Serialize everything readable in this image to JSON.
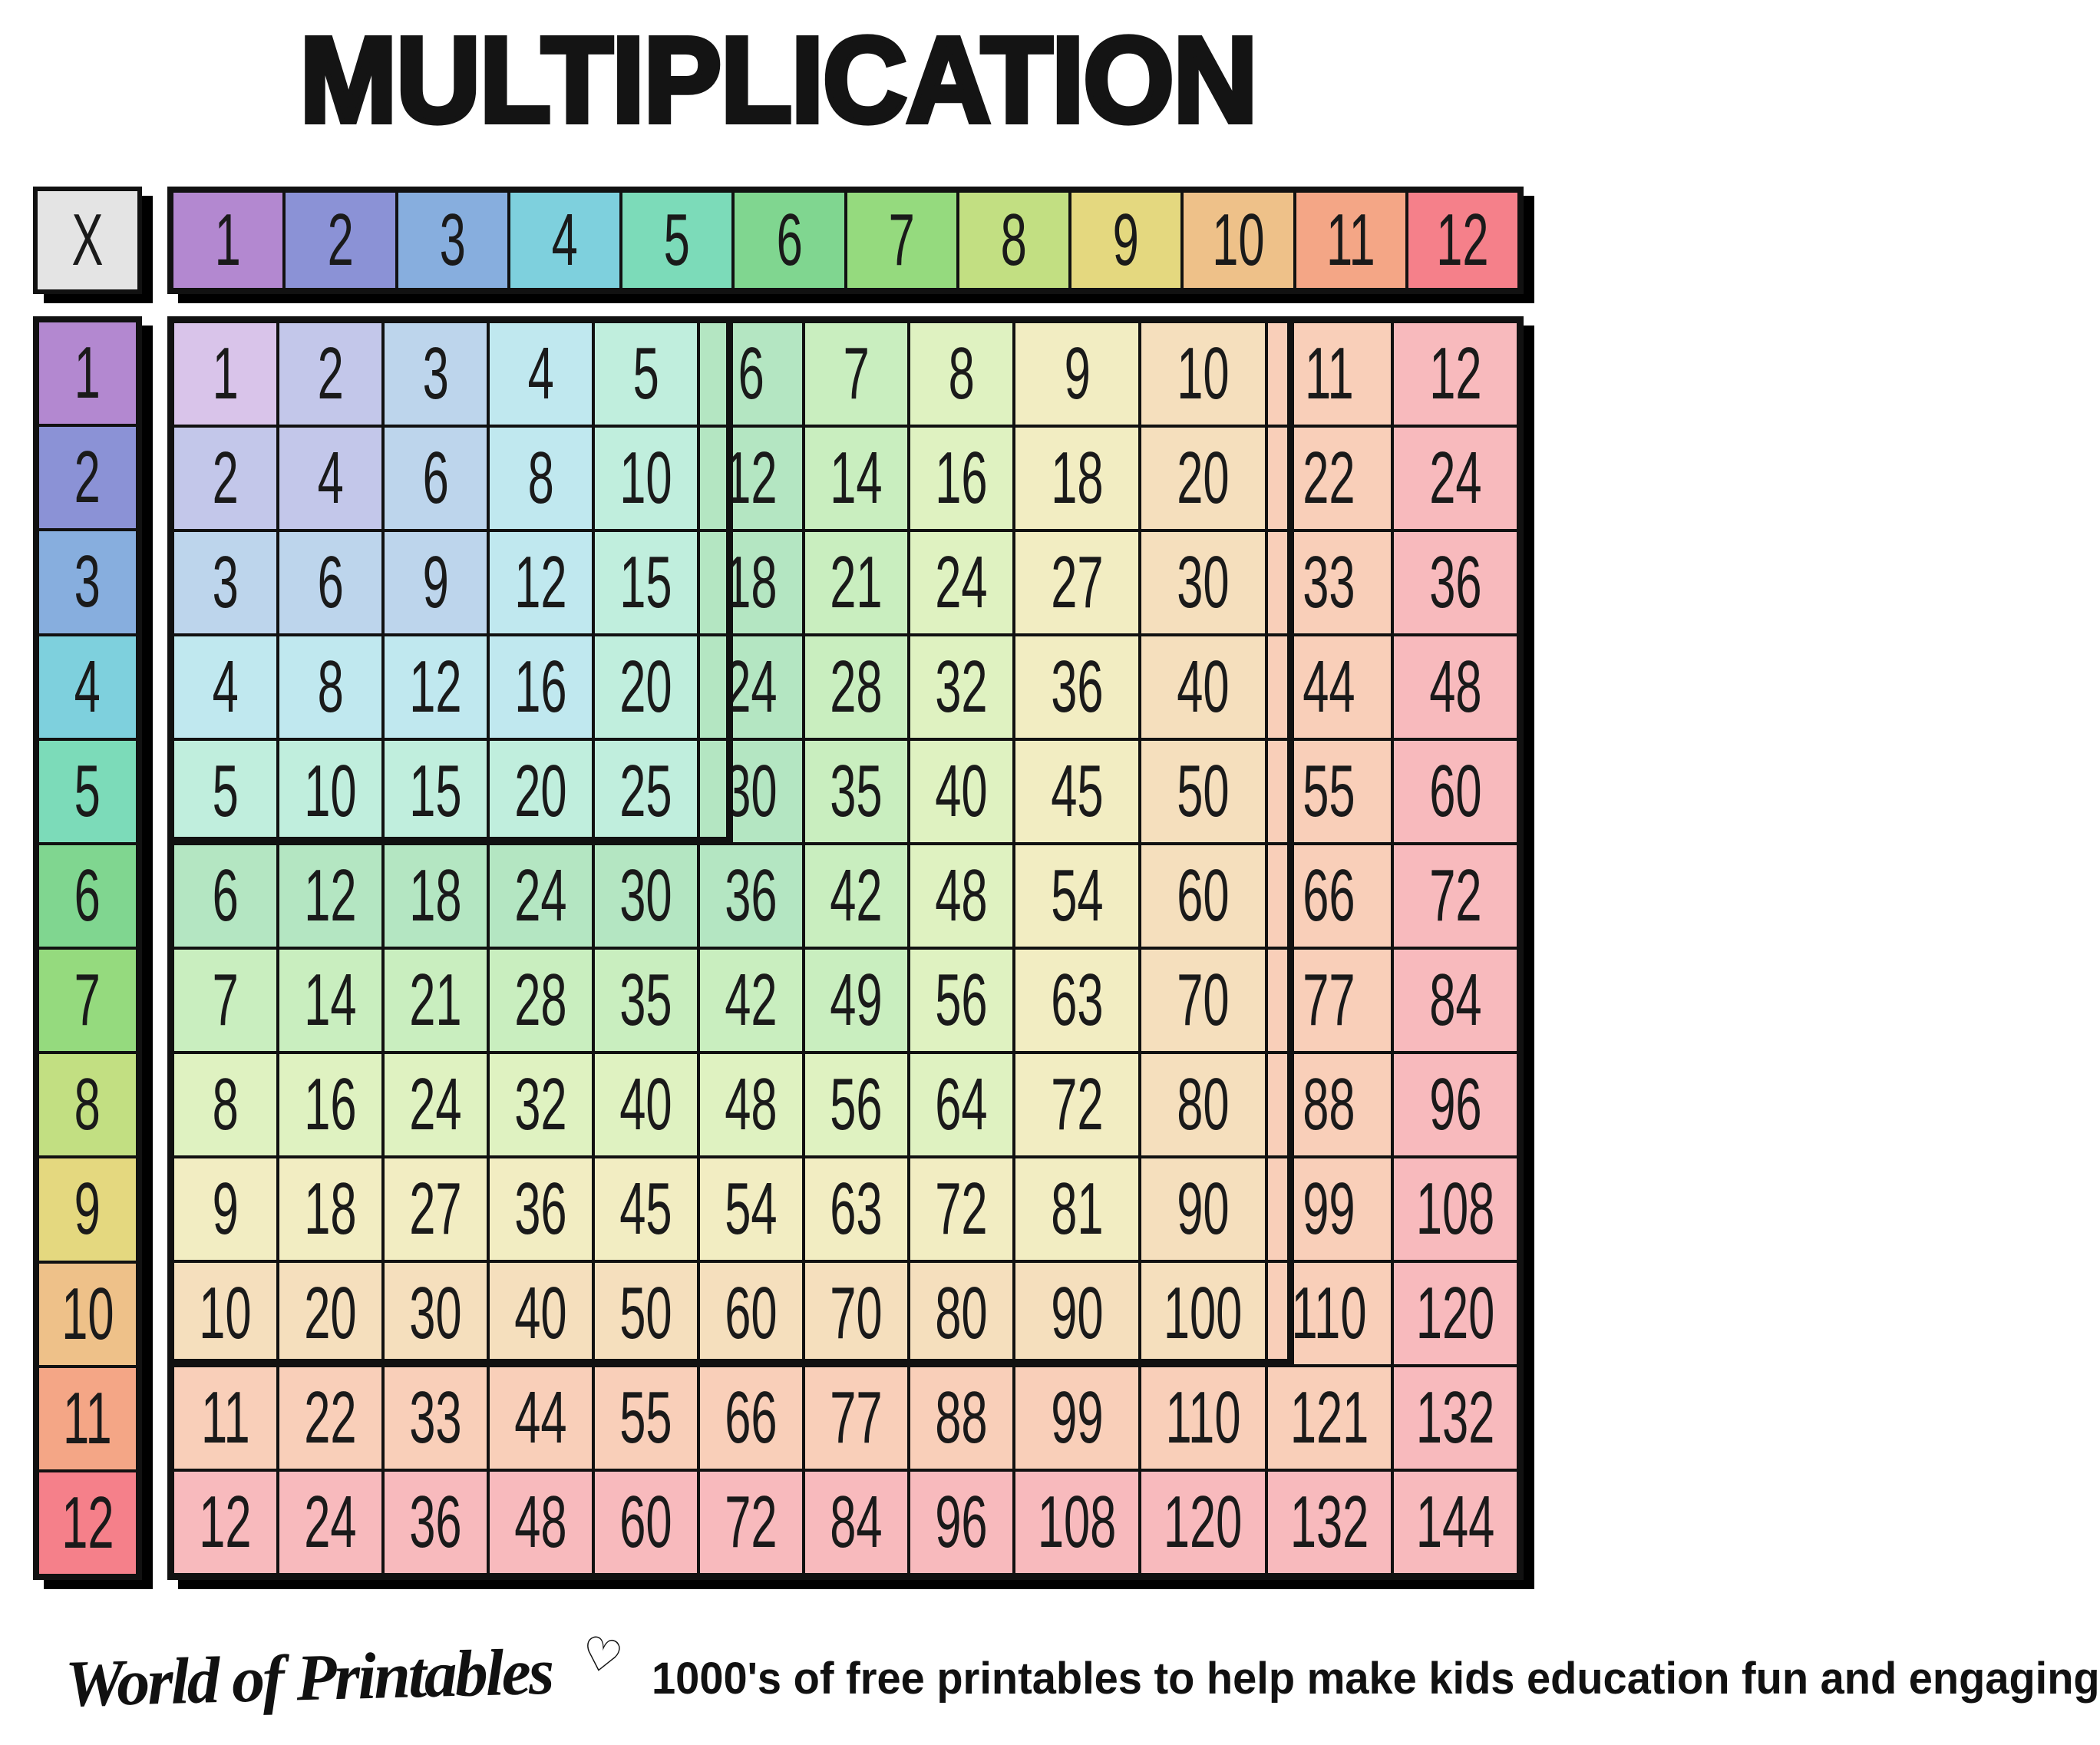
{
  "title": "MULTIPLICATION",
  "corner_label": "X",
  "factors": [
    1,
    2,
    3,
    4,
    5,
    6,
    7,
    8,
    9,
    10,
    11,
    12
  ],
  "colors": {
    "header_scale": [
      "#b388d0",
      "#8b92d6",
      "#87aede",
      "#7ed0dd",
      "#7cdbb9",
      "#80d690",
      "#95da7e",
      "#c2df82",
      "#e4d87f",
      "#eec189",
      "#f4a686",
      "#f5808a"
    ],
    "tint_scale": [
      "#d9c4ea",
      "#c3c7ea",
      "#bdd5ec",
      "#c0e8ef",
      "#c0eedd",
      "#b4e6c2",
      "#c9eebf",
      "#dff2c1",
      "#f2edc2",
      "#f5dfbd",
      "#f9cfb9",
      "#f8babd"
    ],
    "corner_bg": "#e4e4e4",
    "grid_line": "#111111",
    "shadow": "#000000",
    "text": "#1a1a1a"
  },
  "chart_data": {
    "type": "table",
    "title": "MULTIPLICATION",
    "row_headers": [
      1,
      2,
      3,
      4,
      5,
      6,
      7,
      8,
      9,
      10,
      11,
      12
    ],
    "col_headers": [
      1,
      2,
      3,
      4,
      5,
      6,
      7,
      8,
      9,
      10,
      11,
      12
    ],
    "rows": [
      [
        1,
        2,
        3,
        4,
        5,
        6,
        7,
        8,
        9,
        10,
        11,
        12
      ],
      [
        2,
        4,
        6,
        8,
        10,
        12,
        14,
        16,
        18,
        20,
        22,
        24
      ],
      [
        3,
        6,
        9,
        12,
        15,
        18,
        21,
        24,
        27,
        30,
        33,
        36
      ],
      [
        4,
        8,
        12,
        16,
        20,
        24,
        28,
        32,
        36,
        40,
        44,
        48
      ],
      [
        5,
        10,
        15,
        20,
        25,
        30,
        35,
        40,
        45,
        50,
        55,
        60
      ],
      [
        6,
        12,
        18,
        24,
        30,
        36,
        42,
        48,
        54,
        60,
        66,
        72
      ],
      [
        7,
        14,
        21,
        28,
        35,
        42,
        49,
        56,
        63,
        70,
        77,
        84
      ],
      [
        8,
        16,
        24,
        32,
        40,
        48,
        56,
        64,
        72,
        80,
        88,
        96
      ],
      [
        9,
        18,
        27,
        36,
        45,
        54,
        63,
        72,
        81,
        90,
        99,
        108
      ],
      [
        10,
        20,
        30,
        40,
        50,
        60,
        70,
        80,
        90,
        100,
        110,
        120
      ],
      [
        11,
        22,
        33,
        44,
        55,
        66,
        77,
        88,
        99,
        110,
        121,
        132
      ],
      [
        12,
        24,
        36,
        48,
        60,
        72,
        84,
        96,
        108,
        120,
        132,
        144
      ]
    ],
    "highlight_blocks": [
      "1-5 square",
      "1-10 square"
    ],
    "legend_position": "none",
    "grid": true
  },
  "footer": {
    "brand": "World of Printables",
    "heart_icon": "♡",
    "tagline": "1000's of free printables to help make kids education fun and engaging"
  }
}
